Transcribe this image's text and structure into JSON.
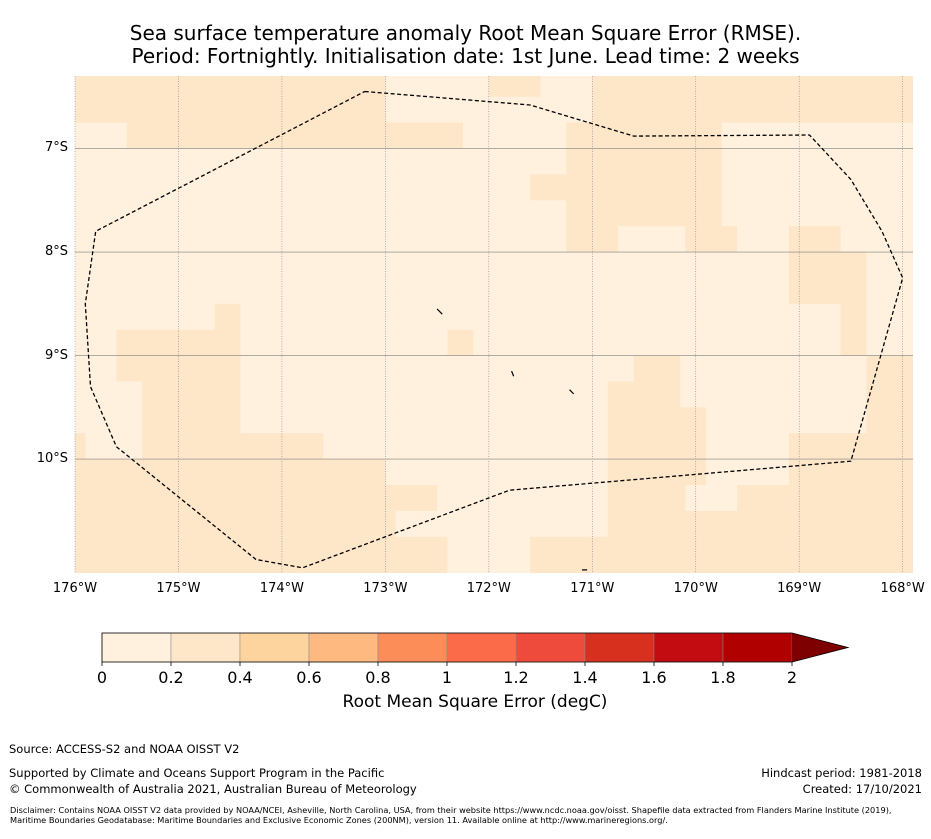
{
  "title": {
    "line1": "Sea surface temperature anomaly Root Mean Square Error (RMSE).",
    "line2": "Period: Fortnightly. Initialisation date: 1st June. Lead time: 2 weeks"
  },
  "map": {
    "lon_range": [
      -176,
      -167.9
    ],
    "lat_range": [
      -11.1,
      -6.3
    ],
    "lat_ticks": [
      {
        "value": -7,
        "label": "7°S"
      },
      {
        "value": -8,
        "label": "8°S"
      },
      {
        "value": -9,
        "label": "9°S"
      },
      {
        "value": -10,
        "label": "10°S"
      }
    ],
    "lon_ticks": [
      {
        "value": -176,
        "label": "176°W"
      },
      {
        "value": -175,
        "label": "175°W"
      },
      {
        "value": -174,
        "label": "174°W"
      },
      {
        "value": -173,
        "label": "173°W"
      },
      {
        "value": -172,
        "label": "172°W"
      },
      {
        "value": -171,
        "label": "171°W"
      },
      {
        "value": -170,
        "label": "170°W"
      },
      {
        "value": -169,
        "label": "169°W"
      },
      {
        "value": -168,
        "label": "168°W"
      }
    ],
    "colors": {
      "bin0": "#fff1de",
      "bin1": "#fee6c8",
      "gridline": "#808080",
      "eez": "#000000"
    },
    "rmse_bin1_cells": [
      {
        "lon": [
          -176,
          -173.0
        ],
        "lat": [
          -6.3,
          -6.75
        ]
      },
      {
        "lon": [
          -175.5,
          -173.0
        ],
        "lat": [
          -6.75,
          -7.0
        ]
      },
      {
        "lon": [
          -173.0,
          -172.25
        ],
        "lat": [
          -6.75,
          -7.0
        ]
      },
      {
        "lon": [
          -170.5,
          -167.9
        ],
        "lat": [
          -6.3,
          -6.75
        ]
      },
      {
        "lon": [
          -172.0,
          -171.5
        ],
        "lat": [
          -6.3,
          -6.5
        ]
      },
      {
        "lon": [
          -171.0,
          -170.5
        ],
        "lat": [
          -6.3,
          -6.75
        ]
      },
      {
        "lon": [
          -169.75,
          -168.25
        ],
        "lat": [
          -6.6,
          -6.75
        ]
      },
      {
        "lon": [
          -171.25,
          -169.75
        ],
        "lat": [
          -6.75,
          -7.75
        ]
      },
      {
        "lon": [
          -171.6,
          -171.25
        ],
        "lat": [
          -7.25,
          -7.5
        ]
      },
      {
        "lon": [
          -171.25,
          -170.75
        ],
        "lat": [
          -7.75,
          -8.0
        ]
      },
      {
        "lon": [
          -170.1,
          -169.6
        ],
        "lat": [
          -7.75,
          -8.0
        ]
      },
      {
        "lon": [
          -169.1,
          -168.6
        ],
        "lat": [
          -7.75,
          -8.5
        ]
      },
      {
        "lon": [
          -168.6,
          -168.35
        ],
        "lat": [
          -8.0,
          -9.0
        ]
      },
      {
        "lon": [
          -175.6,
          -174.4
        ],
        "lat": [
          -8.75,
          -9.25
        ]
      },
      {
        "lon": [
          -174.65,
          -174.4
        ],
        "lat": [
          -8.5,
          -8.75
        ]
      },
      {
        "lon": [
          -175.35,
          -174.4
        ],
        "lat": [
          -9.25,
          -9.75
        ]
      },
      {
        "lon": [
          -172.4,
          -172.15
        ],
        "lat": [
          -8.75,
          -9.0
        ]
      },
      {
        "lon": [
          -170.6,
          -170.15
        ],
        "lat": [
          -9.0,
          -9.25
        ]
      },
      {
        "lon": [
          -170.85,
          -170.15
        ],
        "lat": [
          -9.25,
          -9.5
        ]
      },
      {
        "lon": [
          -170.85,
          -169.9
        ],
        "lat": [
          -9.5,
          -10.25
        ]
      },
      {
        "lon": [
          -170.85,
          -170.1
        ],
        "lat": [
          -10.25,
          -10.5
        ]
      },
      {
        "lon": [
          -168.35,
          -167.9
        ],
        "lat": [
          -9.0,
          -9.75
        ]
      },
      {
        "lon": [
          -169.1,
          -167.9
        ],
        "lat": [
          -9.75,
          -10.25
        ]
      },
      {
        "lon": [
          -176,
          -175.9
        ],
        "lat": [
          -9.75,
          -10.0
        ]
      },
      {
        "lon": [
          -175.35,
          -173.6
        ],
        "lat": [
          -9.75,
          -10.0
        ]
      },
      {
        "lon": [
          -176,
          -173.0
        ],
        "lat": [
          -10.0,
          -10.25
        ]
      },
      {
        "lon": [
          -176,
          -172.5
        ],
        "lat": [
          -10.25,
          -10.5
        ]
      },
      {
        "lon": [
          -176,
          -172.9
        ],
        "lat": [
          -10.5,
          -10.75
        ]
      },
      {
        "lon": [
          -176,
          -172.4
        ],
        "lat": [
          -10.75,
          -11.1
        ]
      },
      {
        "lon": [
          -170.85,
          -167.9
        ],
        "lat": [
          -10.5,
          -11.1
        ]
      },
      {
        "lon": [
          -171.6,
          -170.85
        ],
        "lat": [
          -10.75,
          -11.1
        ]
      },
      {
        "lon": [
          -169.6,
          -167.9
        ],
        "lat": [
          -10.25,
          -10.5
        ]
      }
    ],
    "eez_boundary": [
      [
        -173.2,
        -6.45
      ],
      [
        -171.6,
        -6.58
      ],
      [
        -170.6,
        -6.88
      ],
      [
        -168.9,
        -6.87
      ],
      [
        -168.5,
        -7.3
      ],
      [
        -168.2,
        -7.8
      ],
      [
        -168.0,
        -8.25
      ],
      [
        -168.5,
        -10.02
      ],
      [
        -171.8,
        -10.3
      ],
      [
        -173.8,
        -11.05
      ],
      [
        -174.25,
        -10.97
      ],
      [
        -175.6,
        -9.88
      ],
      [
        -175.85,
        -9.3
      ],
      [
        -175.9,
        -8.5
      ],
      [
        -175.8,
        -7.8
      ],
      [
        -173.2,
        -6.45
      ]
    ],
    "islands": [
      [
        [
          -172.5,
          -8.55
        ],
        [
          -172.45,
          -8.6
        ]
      ],
      [
        [
          -171.78,
          -9.15
        ],
        [
          -171.76,
          -9.2
        ]
      ],
      [
        [
          -171.22,
          -9.33
        ],
        [
          -171.18,
          -9.37
        ]
      ],
      [
        [
          -171.1,
          -11.07
        ],
        [
          -171.05,
          -11.07
        ]
      ]
    ]
  },
  "colorbar": {
    "bounds": [
      "0",
      "0.2",
      "0.4",
      "0.6",
      "0.8",
      "1",
      "1.2",
      "1.4",
      "1.6",
      "1.8",
      "2"
    ],
    "colors": [
      "#fff1de",
      "#fee6c8",
      "#fdd49e",
      "#fdb97f",
      "#fc8d59",
      "#fb6b4a",
      "#ef4b3c",
      "#d7301f",
      "#c30b12",
      "#b00000"
    ],
    "extend_color": "#7f0000",
    "label": "Root Mean Square Error (degC)"
  },
  "footer": {
    "source": "Source: ACCESS-S2 and NOAA OISST V2",
    "support": "Supported by Climate and Oceans Support Program in the Pacific",
    "copyright": "© Commonwealth of Australia 2021, Australian Bureau of Meteorology",
    "hindcast": "Hindcast period: 1981-2018",
    "created": "Created: 17/10/2021",
    "disclaimer": "Disclaimer: Contains NOAA OISST V2 data provided by NOAA/NCEI, Asheville, North Carolina, USA, from their website https://www.ncdc.noaa.gov/oisst. Shapefile data extracted from Flanders Marine Institute (2019), Maritime Boundaries Geodatabase: Maritime Boundaries and Exclusive Economic Zones (200NM), version 11. Available online at http://www.marineregions.org/."
  }
}
